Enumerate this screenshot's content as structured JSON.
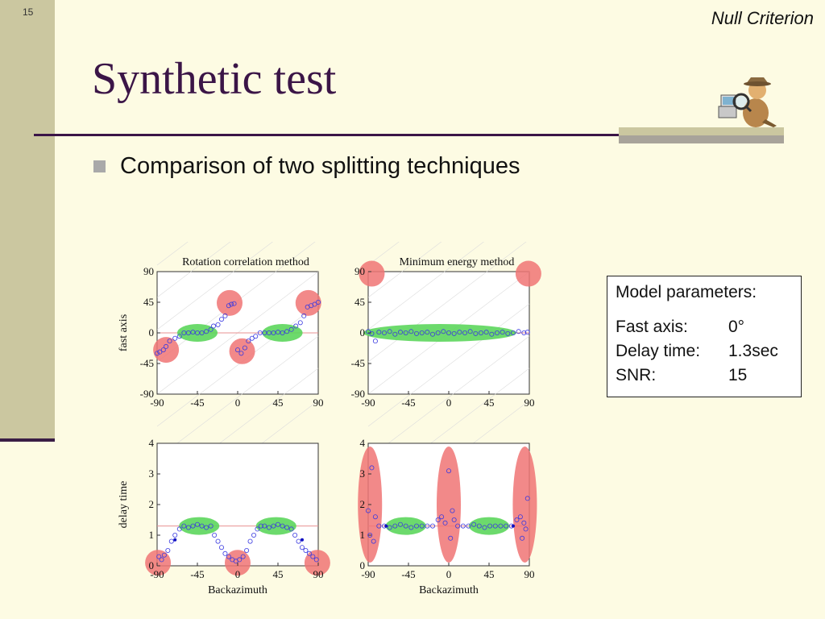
{
  "slide": {
    "number": "15",
    "header": "Null Criterion",
    "title": "Synthetic test",
    "bullet": "Comparison of two splitting techniques"
  },
  "params": {
    "heading": "Model parameters:",
    "rows": [
      {
        "label": "Fast axis:",
        "value": "0°"
      },
      {
        "label": "Delay time:",
        "value": "1.3sec"
      },
      {
        "label": "SNR:",
        "value": "15"
      }
    ]
  },
  "colors": {
    "title": "#3b1547",
    "points": "#3a3ae0",
    "highlight_red": "#f07474",
    "highlight_green": "#5cd65c",
    "reference_line": "#e89090"
  },
  "chart_data": [
    {
      "type": "scatter",
      "panel": "top-left",
      "title": "Rotation correlation method",
      "xlabel": "",
      "ylabel": "fast axis",
      "xlim": [
        -90,
        90
      ],
      "ylim": [
        -90,
        90
      ],
      "xticks": [
        "-90",
        "-45",
        "0",
        "45",
        "90"
      ],
      "yticks": [
        "90",
        "45",
        "0",
        "-45",
        "-90"
      ],
      "reference_y": 0,
      "points": [
        [
          -90,
          -30
        ],
        [
          -87,
          -28
        ],
        [
          -83,
          -25
        ],
        [
          -80,
          -20
        ],
        [
          -76,
          -12
        ],
        [
          -70,
          -8
        ],
        [
          -65,
          -5
        ],
        [
          -60,
          0
        ],
        [
          -55,
          0
        ],
        [
          -50,
          1
        ],
        [
          -45,
          0
        ],
        [
          -40,
          0
        ],
        [
          -35,
          2
        ],
        [
          -30,
          5
        ],
        [
          -27,
          10
        ],
        [
          -22,
          12
        ],
        [
          -18,
          20
        ],
        [
          -14,
          25
        ],
        [
          -10,
          40
        ],
        [
          -7,
          42
        ],
        [
          -4,
          43
        ],
        [
          0,
          -25
        ],
        [
          4,
          -30
        ],
        [
          8,
          -22
        ],
        [
          12,
          -12
        ],
        [
          16,
          -8
        ],
        [
          20,
          -5
        ],
        [
          25,
          0
        ],
        [
          30,
          0
        ],
        [
          35,
          0
        ],
        [
          40,
          0
        ],
        [
          45,
          1
        ],
        [
          50,
          0
        ],
        [
          55,
          2
        ],
        [
          60,
          5
        ],
        [
          65,
          10
        ],
        [
          70,
          15
        ],
        [
          74,
          25
        ],
        [
          78,
          38
        ],
        [
          82,
          40
        ],
        [
          86,
          42
        ],
        [
          90,
          45
        ]
      ],
      "highlights": [
        {
          "shape": "circle",
          "color": "red",
          "x": -80,
          "y": -25
        },
        {
          "shape": "circle",
          "color": "red",
          "x": -9,
          "y": 44
        },
        {
          "shape": "circle",
          "color": "red",
          "x": 5,
          "y": -27
        },
        {
          "shape": "circle",
          "color": "red",
          "x": 79,
          "y": 44
        },
        {
          "shape": "ellipse",
          "color": "green",
          "x": -45,
          "y": 0
        },
        {
          "shape": "ellipse",
          "color": "green",
          "x": 50,
          "y": 0
        }
      ]
    },
    {
      "type": "scatter",
      "panel": "top-right",
      "title": "Minimum energy method",
      "xlabel": "",
      "ylabel": "",
      "xlim": [
        -90,
        90
      ],
      "ylim": [
        -90,
        90
      ],
      "xticks": [
        "-90",
        "-45",
        "0",
        "45",
        "90"
      ],
      "yticks": [
        "90",
        "45",
        "0",
        "-45",
        "-90"
      ],
      "reference_y": 0,
      "points": [
        [
          -90,
          2
        ],
        [
          -86,
          -1
        ],
        [
          -82,
          -12
        ],
        [
          -78,
          1
        ],
        [
          -72,
          0
        ],
        [
          -66,
          2
        ],
        [
          -60,
          -2
        ],
        [
          -54,
          1
        ],
        [
          -48,
          0
        ],
        [
          -42,
          2
        ],
        [
          -36,
          -1
        ],
        [
          -30,
          0
        ],
        [
          -24,
          1
        ],
        [
          -18,
          -2
        ],
        [
          -12,
          0
        ],
        [
          -6,
          2
        ],
        [
          0,
          0
        ],
        [
          6,
          -1
        ],
        [
          12,
          1
        ],
        [
          18,
          0
        ],
        [
          24,
          2
        ],
        [
          30,
          -1
        ],
        [
          36,
          0
        ],
        [
          42,
          1
        ],
        [
          48,
          -2
        ],
        [
          54,
          0
        ],
        [
          60,
          1
        ],
        [
          66,
          -1
        ],
        [
          72,
          0
        ],
        [
          78,
          2
        ],
        [
          84,
          0
        ],
        [
          88,
          1
        ]
      ],
      "highlights": [
        {
          "shape": "circle",
          "color": "red",
          "x": -86,
          "y": 87
        },
        {
          "shape": "circle",
          "color": "red",
          "x": 89,
          "y": 87
        },
        {
          "shape": "ellipse",
          "color": "green",
          "x": -10,
          "y": 0
        }
      ]
    },
    {
      "type": "scatter",
      "panel": "bottom-left",
      "title": "",
      "xlabel": "Backazimuth",
      "ylabel": "delay time",
      "xlim": [
        -90,
        90
      ],
      "ylim": [
        0,
        4
      ],
      "xticks": [
        "-90",
        "-45",
        "0",
        "45",
        "90"
      ],
      "yticks": [
        "4",
        "3",
        "2",
        "1",
        "0"
      ],
      "reference_y": 1.3,
      "points": [
        [
          -88,
          0.3
        ],
        [
          -85,
          0.2
        ],
        [
          -82,
          0.35
        ],
        [
          -78,
          0.5
        ],
        [
          -74,
          0.8
        ],
        [
          -70,
          1.0
        ],
        [
          -65,
          1.2
        ],
        [
          -60,
          1.3
        ],
        [
          -55,
          1.25
        ],
        [
          -50,
          1.3
        ],
        [
          -45,
          1.35
        ],
        [
          -40,
          1.3
        ],
        [
          -35,
          1.25
        ],
        [
          -30,
          1.3
        ],
        [
          -26,
          1.0
        ],
        [
          -22,
          0.8
        ],
        [
          -18,
          0.6
        ],
        [
          -14,
          0.4
        ],
        [
          -10,
          0.3
        ],
        [
          -6,
          0.2
        ],
        [
          -2,
          0.15
        ],
        [
          2,
          0.2
        ],
        [
          6,
          0.3
        ],
        [
          10,
          0.5
        ],
        [
          14,
          0.8
        ],
        [
          18,
          1.0
        ],
        [
          22,
          1.2
        ],
        [
          26,
          1.3
        ],
        [
          30,
          1.3
        ],
        [
          35,
          1.25
        ],
        [
          40,
          1.3
        ],
        [
          45,
          1.35
        ],
        [
          50,
          1.3
        ],
        [
          55,
          1.25
        ],
        [
          60,
          1.2
        ],
        [
          64,
          1.0
        ],
        [
          68,
          0.8
        ],
        [
          72,
          0.6
        ],
        [
          76,
          0.5
        ],
        [
          80,
          0.4
        ],
        [
          84,
          0.3
        ],
        [
          88,
          0.2
        ]
      ],
      "markers": [
        [
          -70,
          0.85
        ],
        [
          72,
          0.85
        ]
      ],
      "highlights": [
        {
          "shape": "circle",
          "color": "red",
          "x": -89,
          "y": 0.1
        },
        {
          "shape": "circle",
          "color": "red",
          "x": 0,
          "y": 0.1
        },
        {
          "shape": "circle",
          "color": "red",
          "x": 89,
          "y": 0.1
        },
        {
          "shape": "ellipse",
          "color": "green",
          "x": -43,
          "y": 1.3
        },
        {
          "shape": "ellipse",
          "color": "green",
          "x": 43,
          "y": 1.3
        }
      ]
    },
    {
      "type": "scatter",
      "panel": "bottom-right",
      "title": "",
      "xlabel": "Backazimuth",
      "ylabel": "",
      "xlim": [
        -90,
        90
      ],
      "ylim": [
        0,
        4
      ],
      "xticks": [
        "-90",
        "-45",
        "0",
        "45",
        "90"
      ],
      "yticks": [
        "4",
        "3",
        "2",
        "1",
        "0"
      ],
      "reference_y": 1.3,
      "points": [
        [
          -90,
          1.8
        ],
        [
          -88,
          1.0
        ],
        [
          -86,
          3.2
        ],
        [
          -84,
          0.8
        ],
        [
          -82,
          1.6
        ],
        [
          -78,
          1.3
        ],
        [
          -72,
          1.3
        ],
        [
          -66,
          1.25
        ],
        [
          -60,
          1.3
        ],
        [
          -54,
          1.35
        ],
        [
          -48,
          1.3
        ],
        [
          -42,
          1.25
        ],
        [
          -36,
          1.3
        ],
        [
          -30,
          1.3
        ],
        [
          -24,
          1.3
        ],
        [
          -18,
          1.3
        ],
        [
          -12,
          1.5
        ],
        [
          -8,
          1.6
        ],
        [
          -4,
          1.4
        ],
        [
          0,
          3.1
        ],
        [
          2,
          0.9
        ],
        [
          4,
          1.8
        ],
        [
          6,
          1.5
        ],
        [
          10,
          1.3
        ],
        [
          16,
          1.3
        ],
        [
          22,
          1.3
        ],
        [
          28,
          1.35
        ],
        [
          34,
          1.3
        ],
        [
          40,
          1.25
        ],
        [
          46,
          1.3
        ],
        [
          52,
          1.3
        ],
        [
          58,
          1.3
        ],
        [
          64,
          1.3
        ],
        [
          70,
          1.3
        ],
        [
          76,
          1.5
        ],
        [
          80,
          1.6
        ],
        [
          82,
          0.9
        ],
        [
          84,
          1.4
        ],
        [
          86,
          1.2
        ],
        [
          88,
          2.2
        ]
      ],
      "markers": [
        [
          -70,
          1.3
        ],
        [
          72,
          1.3
        ]
      ],
      "highlights": [
        {
          "shape": "tall-ellipse",
          "color": "red",
          "x": -88,
          "y": 2.0
        },
        {
          "shape": "tall-ellipse",
          "color": "red",
          "x": 0,
          "y": 2.0
        },
        {
          "shape": "tall-ellipse",
          "color": "red",
          "x": 85,
          "y": 2.0
        },
        {
          "shape": "ellipse",
          "color": "green",
          "x": -48,
          "y": 1.3
        },
        {
          "shape": "ellipse",
          "color": "green",
          "x": 45,
          "y": 1.3
        }
      ]
    }
  ]
}
